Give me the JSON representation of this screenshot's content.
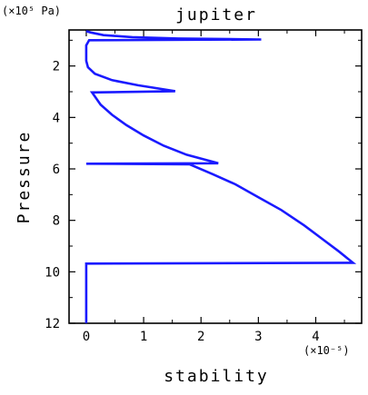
{
  "chart_data": {
    "type": "line",
    "title": "jupiter",
    "xlabel": "stability",
    "ylabel": "Pressure",
    "x_unit": "(×10⁻⁵)",
    "y_unit": "(×10⁵ Pa)",
    "xlim": [
      -0.3,
      4.8
    ],
    "ylim": [
      12,
      0.6
    ],
    "y_inverted": true,
    "x_ticks": [
      0,
      1,
      2,
      3,
      4
    ],
    "y_ticks": [
      2,
      4,
      6,
      8,
      10,
      12
    ],
    "grid": false,
    "series": [
      {
        "color": "#1a1aff",
        "points": [
          [
            0.0,
            0.65
          ],
          [
            0.08,
            0.7
          ],
          [
            0.3,
            0.8
          ],
          [
            0.8,
            0.88
          ],
          [
            1.6,
            0.93
          ],
          [
            3.05,
            0.97
          ],
          [
            0.05,
            1.0
          ],
          [
            0.0,
            1.2
          ],
          [
            0.0,
            1.5
          ],
          [
            0.0,
            1.8
          ],
          [
            0.03,
            2.05
          ],
          [
            0.15,
            2.3
          ],
          [
            0.45,
            2.55
          ],
          [
            0.9,
            2.75
          ],
          [
            1.55,
            2.98
          ],
          [
            0.1,
            3.03
          ],
          [
            0.25,
            3.5
          ],
          [
            0.45,
            3.9
          ],
          [
            0.7,
            4.3
          ],
          [
            1.0,
            4.7
          ],
          [
            1.35,
            5.1
          ],
          [
            1.75,
            5.45
          ],
          [
            2.3,
            5.78
          ],
          [
            0.0,
            5.8
          ],
          [
            1.8,
            5.82
          ],
          [
            2.2,
            6.2
          ],
          [
            2.6,
            6.6
          ],
          [
            3.0,
            7.1
          ],
          [
            3.4,
            7.6
          ],
          [
            3.8,
            8.2
          ],
          [
            4.1,
            8.7
          ],
          [
            4.4,
            9.2
          ],
          [
            4.65,
            9.65
          ],
          [
            0.0,
            9.68
          ],
          [
            0.0,
            10.5
          ],
          [
            0.0,
            12.0
          ]
        ]
      }
    ]
  }
}
